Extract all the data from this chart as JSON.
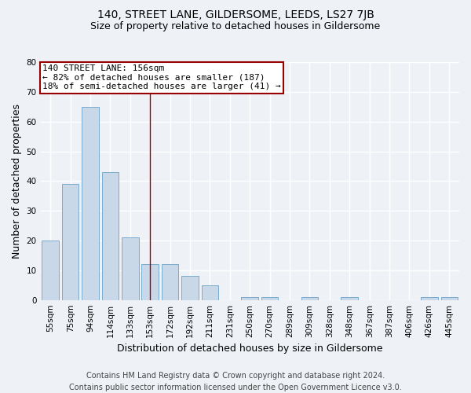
{
  "title": "140, STREET LANE, GILDERSOME, LEEDS, LS27 7JB",
  "subtitle": "Size of property relative to detached houses in Gildersome",
  "xlabel": "Distribution of detached houses by size in Gildersome",
  "ylabel": "Number of detached properties",
  "categories": [
    "55sqm",
    "75sqm",
    "94sqm",
    "114sqm",
    "133sqm",
    "153sqm",
    "172sqm",
    "192sqm",
    "211sqm",
    "231sqm",
    "250sqm",
    "270sqm",
    "289sqm",
    "309sqm",
    "328sqm",
    "348sqm",
    "367sqm",
    "387sqm",
    "406sqm",
    "426sqm",
    "445sqm"
  ],
  "values": [
    20,
    39,
    65,
    43,
    21,
    12,
    12,
    8,
    5,
    0,
    1,
    1,
    0,
    1,
    0,
    1,
    0,
    0,
    0,
    1,
    1
  ],
  "bar_color": "#c8d8e8",
  "bar_edge_color": "#7aabcc",
  "vline_x_index": 5,
  "vline_color": "#990000",
  "annotation_line1": "140 STREET LANE: 156sqm",
  "annotation_line2": "← 82% of detached houses are smaller (187)",
  "annotation_line3": "18% of semi-detached houses are larger (41) →",
  "annotation_box_color": "#ffffff",
  "annotation_box_edge_color": "#990000",
  "ylim": [
    0,
    80
  ],
  "yticks": [
    0,
    10,
    20,
    30,
    40,
    50,
    60,
    70,
    80
  ],
  "footer_line1": "Contains HM Land Registry data © Crown copyright and database right 2024.",
  "footer_line2": "Contains public sector information licensed under the Open Government Licence v3.0.",
  "bg_color": "#eef2f7",
  "grid_color": "#ffffff",
  "title_fontsize": 10,
  "subtitle_fontsize": 9,
  "axis_label_fontsize": 9,
  "tick_fontsize": 7.5,
  "footer_fontsize": 7,
  "annotation_fontsize": 8
}
